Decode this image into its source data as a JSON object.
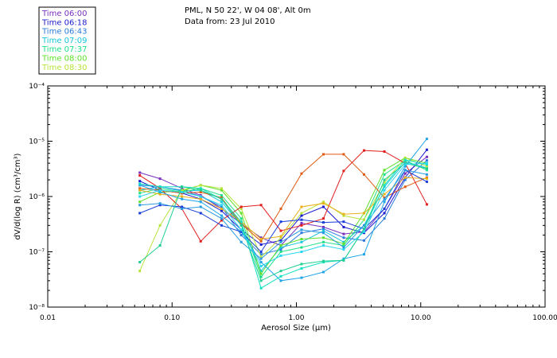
{
  "chart_data": {
    "type": "line",
    "title": "PML, N 50 22', W 04 08', Alt 0m",
    "subtitle": "Data from: 23 Jul 2010",
    "xlabel": "Aerosol Size (μm)",
    "ylabel": "dV/d(log R) (cm³/cm³)",
    "xscale": "log",
    "yscale": "log",
    "xlim": [
      0.01,
      100
    ],
    "ylim": [
      1e-08,
      0.0001
    ],
    "xticks": [
      0.01,
      0.1,
      1,
      10,
      100
    ],
    "xtick_labels": [
      "0.01",
      "0.10",
      "1.00",
      "10.00",
      "100.00"
    ],
    "yticks": [
      1e-08,
      1e-07,
      1e-06,
      1e-05,
      0.0001
    ],
    "ytick_labels": [
      "10⁻⁸",
      "10⁻⁷",
      "10⁻⁶",
      "10⁻⁵",
      "10⁻⁴"
    ],
    "legend_location": "top-left outside",
    "x": [
      0.055,
      0.08,
      0.12,
      0.17,
      0.25,
      0.36,
      0.52,
      0.75,
      1.1,
      1.65,
      2.4,
      3.5,
      5.1,
      7.5,
      11.2
    ],
    "series": [
      {
        "name": "Time 06:00",
        "color": "#7b2fbe",
        "values": [
          2.7e-06,
          2.1e-06,
          1.4e-06,
          1.05e-06,
          6e-07,
          3.2e-07,
          1.8e-07,
          1.3e-07,
          3.3e-07,
          2.8e-07,
          2.1e-07,
          2.3e-07,
          6e-07,
          2.6e-06,
          5.2e-06
        ]
      },
      {
        "name": "Time 06:18",
        "color": "#1c1ccf",
        "values": [
          1.9e-06,
          1.3e-06,
          1.15e-06,
          9e-07,
          5.5e-07,
          2.5e-07,
          1.35e-07,
          1.6e-07,
          4.5e-07,
          6.5e-07,
          2.8e-07,
          2.2e-07,
          5e-07,
          2.2e-06,
          7e-06
        ]
      },
      {
        "name": "Time 06:43",
        "color": "#2b7bdc",
        "values": [
          1.6e-06,
          1.5e-06,
          1.3e-06,
          1e-06,
          6.5e-07,
          2e-07,
          9e-08,
          1.1e-07,
          2.2e-07,
          2.6e-07,
          1.8e-07,
          1.6e-07,
          4e-07,
          2e-06,
          4.5e-06
        ]
      },
      {
        "name": "Time 07:09",
        "color": "#17c6da",
        "values": [
          1.3e-06,
          1.5e-06,
          1.25e-06,
          1.3e-06,
          8e-07,
          3e-07,
          4.5e-08,
          1.2e-07,
          1.5e-07,
          2.4e-07,
          1.5e-07,
          3e-07,
          1.5e-06,
          4.2e-06,
          3.3e-06
        ]
      },
      {
        "name": "Time 07:37",
        "color": "#1fe08a",
        "values": [
          1.15e-06,
          1.4e-06,
          1.2e-06,
          1.4e-06,
          1.05e-06,
          4e-07,
          3.5e-08,
          1e-07,
          1.2e-07,
          1.5e-07,
          1.3e-07,
          3.8e-07,
          2.5e-06,
          4.5e-06,
          3e-06
        ]
      },
      {
        "name": "Time 08:00",
        "color": "#5fe02a",
        "values": [
          8e-07,
          1.2e-06,
          1.25e-06,
          1.6e-06,
          1.3e-06,
          5e-07,
          4e-08,
          1.3e-07,
          1.7e-07,
          1.8e-07,
          1.4e-07,
          5e-07,
          3e-06,
          5e-06,
          4e-06
        ]
      },
      {
        "name": "Time 08:30",
        "color": "#b7e33a",
        "values": [
          4.5e-08,
          3e-07,
          1.3e-06,
          1.6e-06,
          1.4e-06,
          6e-07,
          8e-08,
          1.8e-07,
          5e-07,
          8e-07,
          4.5e-07,
          3.8e-07,
          1.8e-06,
          5e-06,
          3.5e-06
        ]
      },
      {
        "name": "",
        "color": "#e05a10",
        "values": [
          1.4e-06,
          1.3e-06,
          1.15e-06,
          1.2e-06,
          9.5e-07,
          3.2e-07,
          1.55e-07,
          6e-07,
          2.6e-06,
          5.8e-06,
          5.8e-06,
          2.5e-06,
          9.5e-07,
          1.5e-06,
          2.2e-06
        ]
      },
      {
        "name": "",
        "color": "#e31e1e",
        "values": [
          2.4e-06,
          1.4e-06,
          6e-07,
          1.55e-07,
          3.7e-07,
          6.5e-07,
          7e-07,
          2.4e-07,
          3e-07,
          4e-07,
          2.9e-06,
          6.8e-06,
          6.5e-06,
          4e-06,
          7.2e-07
        ]
      },
      {
        "name": "",
        "color": "#e8b01a",
        "values": [
          1.3e-06,
          1.1e-06,
          1e-06,
          9e-07,
          6e-07,
          3.5e-07,
          1.7e-07,
          1.9e-07,
          6.5e-07,
          7.5e-07,
          4.8e-07,
          5e-07,
          1.1e-06,
          2.2e-06,
          2.1e-06
        ]
      },
      {
        "name": "",
        "color": "#1fa5e8",
        "values": [
          1.6e-06,
          1.2e-06,
          9e-07,
          8e-07,
          4.5e-07,
          2.3e-07,
          6.5e-08,
          3e-08,
          3.4e-08,
          4.3e-08,
          7.5e-08,
          9e-08,
          8e-07,
          3.5e-06,
          1.1e-05
        ]
      },
      {
        "name": "",
        "color": "#13e0c0",
        "values": [
          1.7e-06,
          1.5e-06,
          1.5e-06,
          1.4e-06,
          9e-07,
          3.5e-07,
          2.2e-08,
          3.6e-08,
          5e-08,
          6.5e-08,
          7e-08,
          2.6e-07,
          1.6e-06,
          4.6e-06,
          3.8e-06
        ]
      },
      {
        "name": "",
        "color": "#1a3fd8",
        "values": [
          5e-07,
          7e-07,
          6.5e-07,
          5e-07,
          3e-07,
          2.3e-07,
          1e-07,
          3.5e-07,
          3.8e-07,
          3.4e-07,
          3.5e-07,
          2.6e-07,
          6e-07,
          3e-06,
          1.85e-06
        ]
      },
      {
        "name": "",
        "color": "#2a9ae0",
        "values": [
          7e-07,
          7.5e-07,
          6e-07,
          6.5e-07,
          4e-07,
          1.5e-07,
          7.5e-08,
          1.5e-07,
          2.5e-07,
          2.2e-07,
          1.2e-07,
          3e-07,
          9e-07,
          3e-06,
          2.5e-06
        ]
      },
      {
        "name": "",
        "color": "#1fd090",
        "values": [
          6.5e-08,
          1.3e-07,
          1.5e-06,
          1.3e-06,
          9e-07,
          3e-07,
          3e-08,
          4.5e-08,
          6e-08,
          6.8e-08,
          7e-08,
          2.6e-07,
          2e-06,
          4e-06,
          3.2e-06
        ]
      },
      {
        "name": "",
        "color": "#28d6ee",
        "values": [
          1e-06,
          1.3e-06,
          1.2e-06,
          1e-06,
          7e-07,
          2.5e-07,
          5.5e-08,
          8.5e-08,
          1e-07,
          1.3e-07,
          1.1e-07,
          2.3e-07,
          1.3e-06,
          3.8e-06,
          4e-06
        ]
      }
    ]
  }
}
